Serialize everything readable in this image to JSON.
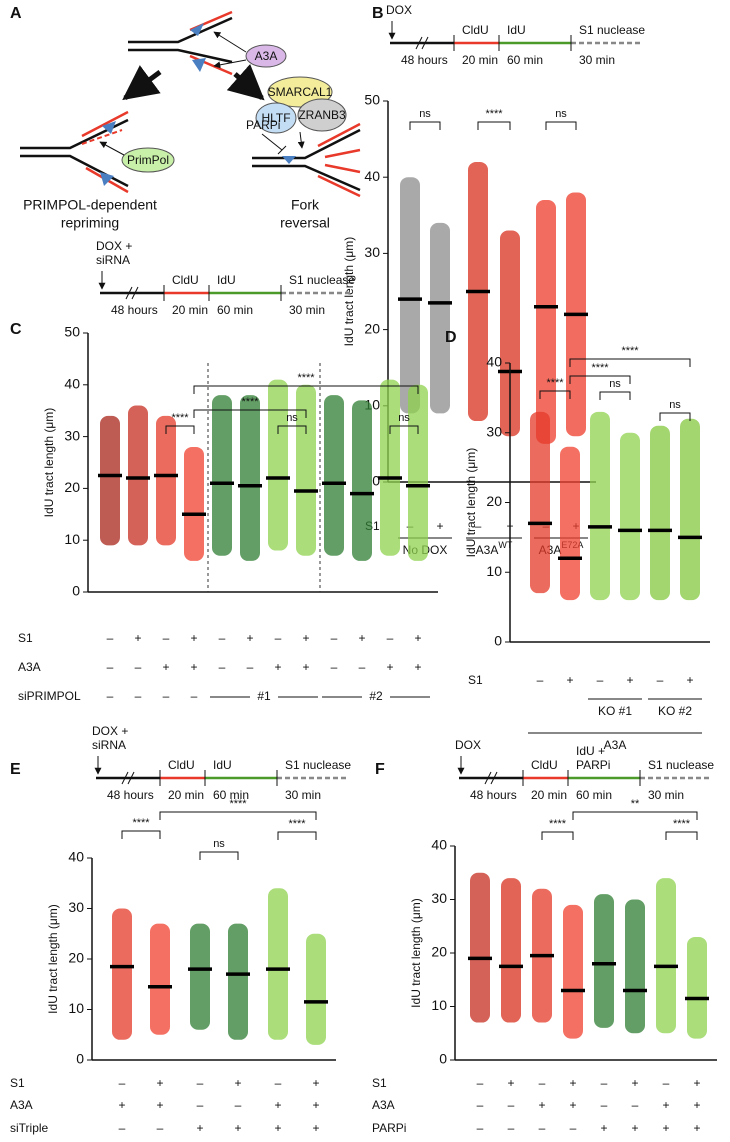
{
  "diagram": {
    "label": "A",
    "nodes": [
      "A3A",
      "PrimPol",
      "SMARCAL1",
      "HLTF",
      "ZRANB3",
      "PARPi"
    ],
    "outcomes": [
      [
        "PRIMPOL-dependent",
        "repriming"
      ],
      [
        "Fork",
        "reversal"
      ]
    ]
  },
  "chart_data": [
    {
      "type": "dot",
      "label": "B",
      "ylabel": "IdU tract length (μm)",
      "ylim": [
        0,
        50
      ],
      "yticks": [
        0,
        10,
        20,
        30,
        40,
        50
      ],
      "values": [
        24,
        23.5,
        25,
        14.5,
        23,
        22
      ],
      "ranges": [
        [
          9,
          40
        ],
        [
          9,
          34
        ],
        [
          8,
          42
        ],
        [
          6,
          33
        ],
        [
          5,
          37
        ],
        [
          6,
          38
        ]
      ],
      "colors": [
        "#8c8c8c",
        "#8c8c8c",
        "#d7301f",
        "#d7301f",
        "#ee3b2b",
        "#ee3b2b"
      ],
      "rows": [
        {
          "name": "S1",
          "marks": [
            "–",
            "+",
            "–",
            "+",
            "–",
            "+"
          ]
        }
      ],
      "group_labels": [
        {
          "text": "No DOX"
        },
        {
          "text": "A3A",
          "sup": "WT"
        },
        {
          "text": "A3A",
          "sup": "E72A"
        }
      ],
      "significance": [
        "ns",
        "****",
        "ns"
      ],
      "timeline": {
        "start": [
          "DOX"
        ],
        "wait": "48 hours",
        "label1": [
          "CldU"
        ],
        "time1": "20 min",
        "label2": [
          "IdU"
        ],
        "time2": "60 min",
        "label3": [
          "S1 nuclease"
        ],
        "time3": "30 min"
      }
    },
    {
      "type": "dot",
      "label": "C",
      "ylabel": "IdU tract length (μm)",
      "ylim": [
        0,
        50
      ],
      "yticks": [
        0,
        10,
        20,
        30,
        40,
        50
      ],
      "values": [
        22.5,
        22,
        22.5,
        15,
        21,
        20.5,
        22,
        19.5,
        21,
        19,
        22,
        20.5
      ],
      "ranges": [
        [
          9,
          34
        ],
        [
          9,
          36
        ],
        [
          9,
          34
        ],
        [
          6,
          28
        ],
        [
          7,
          38
        ],
        [
          6,
          38
        ],
        [
          8,
          41
        ],
        [
          7,
          40
        ],
        [
          7,
          38
        ],
        [
          6,
          37
        ],
        [
          7,
          41
        ],
        [
          6,
          40
        ]
      ],
      "colors": [
        "#a8261b",
        "#c62d20",
        "#e4392a",
        "#f0402f",
        "#2e7d32",
        "#2e7d32",
        "#8fd14f",
        "#8fd14f",
        "#2e7d32",
        "#2e7d32",
        "#8fd14f",
        "#8fd14f"
      ],
      "rows": [
        {
          "name": "S1",
          "marks": [
            "–",
            "+",
            "–",
            "+",
            "–",
            "+",
            "–",
            "+",
            "–",
            "+",
            "–",
            "+"
          ]
        },
        {
          "name": "A3A",
          "marks": [
            "–",
            "–",
            "+",
            "+",
            "–",
            "–",
            "+",
            "+",
            "–",
            "–",
            "+",
            "+"
          ]
        },
        {
          "name": "siPRIMPOL",
          "marks": [
            "–",
            "–",
            "–",
            "–",
            null,
            null,
            null,
            null,
            null,
            null,
            null,
            null
          ]
        }
      ],
      "group_labels": [
        {
          "text": "#1"
        },
        {
          "text": "#2"
        }
      ],
      "significance": [
        "****",
        "ns",
        "ns",
        "****",
        "****"
      ],
      "timeline": {
        "start": [
          "DOX +",
          "siRNA"
        ],
        "wait": "48 hours",
        "label1": [
          "CldU"
        ],
        "time1": "20 min",
        "label2": [
          "IdU"
        ],
        "time2": "60 min",
        "label3": [
          "S1 nuclease"
        ],
        "time3": "30 min"
      }
    },
    {
      "type": "dot",
      "label": "D",
      "ylabel": "IdU tract length (μm)",
      "ylim": [
        0,
        40
      ],
      "yticks": [
        0,
        10,
        20,
        30,
        40
      ],
      "values": [
        17,
        12,
        16.5,
        16,
        16,
        15
      ],
      "ranges": [
        [
          7,
          33
        ],
        [
          6,
          28
        ],
        [
          6,
          33
        ],
        [
          6,
          30
        ],
        [
          6,
          31
        ],
        [
          6,
          32
        ]
      ],
      "colors": [
        "#e4392a",
        "#f0402f",
        "#8fd14f",
        "#8fd14f",
        "#86c840",
        "#86c840"
      ],
      "rows": [
        {
          "name": "S1",
          "marks": [
            "–",
            "+",
            "–",
            "+",
            "–",
            "+"
          ]
        }
      ],
      "group_labels": [
        {
          "text": "KO #1"
        },
        {
          "text": "KO #2"
        },
        {
          "text": "A3A"
        }
      ],
      "significance": [
        "****",
        "****",
        "****",
        "ns",
        "ns"
      ],
      "timeline": null
    },
    {
      "type": "dot",
      "label": "E",
      "ylabel": "IdU tract length (μm)",
      "ylim": [
        0,
        40
      ],
      "yticks": [
        0,
        10,
        20,
        30,
        40
      ],
      "values": [
        18.5,
        14.5,
        18,
        17,
        18,
        11.5
      ],
      "ranges": [
        [
          4,
          30
        ],
        [
          5,
          27
        ],
        [
          6,
          27
        ],
        [
          4,
          27
        ],
        [
          4,
          34
        ],
        [
          3,
          25
        ]
      ],
      "colors": [
        "#e4392a",
        "#f0402f",
        "#2e7d32",
        "#2e7d32",
        "#8fd14f",
        "#8fd14f"
      ],
      "rows": [
        {
          "name": "S1",
          "marks": [
            "–",
            "+",
            "–",
            "+",
            "–",
            "+"
          ]
        },
        {
          "name": "A3A",
          "marks": [
            "+",
            "+",
            "–",
            "–",
            "+",
            "+"
          ]
        },
        {
          "name": "siTriple",
          "marks": [
            "–",
            "–",
            "+",
            "+",
            "+",
            "+"
          ]
        }
      ],
      "group_labels": [],
      "significance": [
        "****",
        "****",
        "ns",
        "****"
      ],
      "timeline": {
        "start": [
          "DOX +",
          "siRNA"
        ],
        "wait": "48 hours",
        "label1": [
          "CldU"
        ],
        "time1": "20 min",
        "label2": [
          "IdU"
        ],
        "time2": "60 min",
        "label3": [
          "S1 nuclease"
        ],
        "time3": "30 min"
      }
    },
    {
      "type": "dot",
      "label": "F",
      "ylabel": "IdU tract length (μm)",
      "ylim": [
        0,
        40
      ],
      "yticks": [
        0,
        10,
        20,
        30,
        40
      ],
      "values": [
        19,
        17.5,
        19.5,
        13,
        18,
        13,
        17.5,
        11.5
      ],
      "ranges": [
        [
          7,
          35
        ],
        [
          7,
          34
        ],
        [
          7,
          32
        ],
        [
          4,
          29
        ],
        [
          6,
          31
        ],
        [
          5,
          30
        ],
        [
          5,
          34
        ],
        [
          4,
          23
        ]
      ],
      "colors": [
        "#c62d20",
        "#d7301f",
        "#e4392a",
        "#f0402f",
        "#2e7d32",
        "#2e7d32",
        "#8fd14f",
        "#8fd14f"
      ],
      "rows": [
        {
          "name": "S1",
          "marks": [
            "–",
            "+",
            "–",
            "+",
            "–",
            "+",
            "–",
            "+"
          ]
        },
        {
          "name": "A3A",
          "marks": [
            "–",
            "–",
            "+",
            "+",
            "–",
            "–",
            "+",
            "+"
          ]
        },
        {
          "name": "PARPi",
          "marks": [
            "–",
            "–",
            "–",
            "–",
            "+",
            "+",
            "+",
            "+"
          ]
        }
      ],
      "group_labels": [],
      "significance": [
        "****",
        "****",
        "**"
      ],
      "timeline": {
        "start": [
          "DOX"
        ],
        "wait": "48 hours",
        "label1": [
          "CldU"
        ],
        "time1": "20 min",
        "label2": [
          "IdU +",
          "PARPi"
        ],
        "time2": "60 min",
        "label3": [
          "S1 nuclease"
        ],
        "time3": "30 min"
      }
    }
  ]
}
